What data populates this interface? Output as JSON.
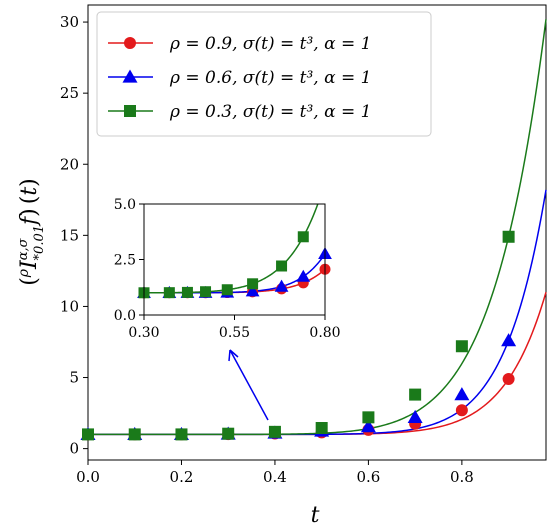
{
  "chart_data": [
    {
      "type": "line",
      "xlabel": "t",
      "ylabel": "(ρI^{α,σ}_{*0.01}f)(t)",
      "xlim": [
        0.0,
        0.98
      ],
      "ylim": [
        -0.8,
        31.2
      ],
      "xticks": [
        "0.0",
        "0.2",
        "0.4",
        "0.6",
        "0.8"
      ],
      "xtick_values": [
        0.0,
        0.2,
        0.4,
        0.6,
        0.8
      ],
      "yticks": [
        "0",
        "5",
        "10",
        "15",
        "20",
        "25",
        "30"
      ],
      "ytick_values": [
        0,
        5,
        10,
        15,
        20,
        25,
        30
      ],
      "legend_position": "upper-left",
      "marker_x": [
        0.0,
        0.1,
        0.2,
        0.3,
        0.4,
        0.5,
        0.6,
        0.7,
        0.8,
        0.9
      ],
      "series": [
        {
          "name": "ρ = 0.9, σ(t) = t³, α = 1",
          "color": "#e31a1c",
          "marker": "circle",
          "values": [
            1.0,
            1.0,
            1.0,
            1.02,
            1.06,
            1.14,
            1.32,
            1.75,
            2.7,
            4.9
          ],
          "end_value": 11.0
        },
        {
          "name": "ρ = 0.6, σ(t) = t³, α = 1",
          "color": "#0000ee",
          "marker": "triangle",
          "values": [
            1.0,
            1.0,
            1.0,
            1.03,
            1.1,
            1.24,
            1.55,
            2.2,
            3.8,
            7.6
          ],
          "end_value": 18.2
        },
        {
          "name": "ρ = 0.3, σ(t) = t³, α = 1",
          "color": "#1a7a1a",
          "marker": "square",
          "values": [
            1.0,
            1.0,
            1.0,
            1.05,
            1.18,
            1.45,
            2.2,
            3.8,
            7.2,
            14.9
          ],
          "end_value": 30.2
        }
      ]
    },
    {
      "type": "line",
      "role": "inset-zoom",
      "xlim": [
        0.3,
        0.8
      ],
      "ylim": [
        0.0,
        5.0
      ],
      "xticks": [
        "0.30",
        "0.55",
        "0.80"
      ],
      "xtick_values": [
        0.3,
        0.55,
        0.8
      ],
      "yticks": [
        "0.0",
        "2.5",
        "5.0"
      ],
      "ytick_values": [
        0.0,
        2.5,
        5.0
      ],
      "annotation": "arrow from zoomed region near t = 0.4 to inset"
    }
  ],
  "legend": {
    "entries": [
      {
        "rho": "0.9",
        "label_prefix": "ρ = 0.9, σ(",
        "t": "t",
        "mid": ") = ",
        "t3": "t",
        "exp": "3",
        "tail": ", α = 1"
      },
      {
        "rho": "0.6",
        "label_prefix": "ρ = 0.6, σ(",
        "t": "t",
        "mid": ") = ",
        "t3": "t",
        "exp": "3",
        "tail": ", α = 1"
      },
      {
        "rho": "0.3",
        "label_prefix": "ρ = 0.3, σ(",
        "t": "t",
        "mid": ") = ",
        "t3": "t",
        "exp": "3",
        "tail": ", α = 1"
      }
    ]
  },
  "colors": {
    "red": "#e31a1c",
    "blue": "#0000ee",
    "green": "#1a7a1a"
  }
}
